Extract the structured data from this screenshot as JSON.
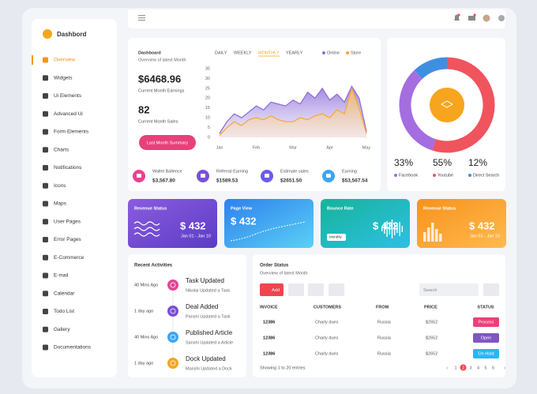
{
  "sidebar": {
    "brand": "Dashbord",
    "active": 0,
    "menu": [
      "Overview",
      "Widgets",
      "Ui Elements",
      "Advanced Ui",
      "Form Elements",
      "Charts",
      "Notifications",
      "Icons",
      "Maps",
      "User Pages",
      "Error Pages",
      "E-Commerce",
      "E-mail",
      "Calendar",
      "Todo List",
      "Gallery",
      "Documentations"
    ]
  },
  "overview": {
    "title": "Dashboard",
    "subtitle": "Overview of latest Month",
    "tabs": [
      "DAILY",
      "WEEKLY",
      "MONTHLY",
      "YEARLY"
    ],
    "active_tab": 2,
    "earnings": "$6468.96",
    "earnings_label": "Current Month Earnings",
    "sales": "82",
    "sales_label": "Current Month Sales",
    "button": "Last Month Summary",
    "summary": [
      {
        "label": "Wallet Ballence",
        "value": "$3,567.80",
        "color": "#e84393"
      },
      {
        "label": "Referral Earning",
        "value": "$1589.53",
        "color": "#7b4fd6"
      },
      {
        "label": "Estimate sales",
        "value": "$2651.50",
        "color": "#6c5ce7"
      },
      {
        "label": "Earning",
        "value": "$53,567.54",
        "color": "#3da5f4"
      }
    ]
  },
  "chart_data": [
    {
      "type": "line",
      "legend": "top-right",
      "x": [
        0,
        0.2,
        0.4,
        0.6,
        0.8,
        1,
        1.2,
        1.4,
        1.6,
        1.8,
        2,
        2.2,
        2.4,
        2.6,
        2.8,
        3,
        3.2,
        3.4,
        3.6,
        3.8,
        4
      ],
      "xlim": [
        0,
        4
      ],
      "xticks": [
        {
          "value": 0,
          "label": "Jan"
        },
        {
          "value": 1,
          "label": "Feb"
        },
        {
          "value": 2,
          "label": "Mar"
        },
        {
          "value": 3,
          "label": "Apr"
        },
        {
          "value": 4,
          "label": "May"
        }
      ],
      "ylim": [
        0,
        35
      ],
      "yticks": [
        0,
        5,
        10,
        15,
        20,
        25,
        30,
        35
      ],
      "series": [
        {
          "name": "Online",
          "color": "#8e6fd8",
          "values": [
            2,
            8,
            12,
            10,
            13,
            16,
            14,
            18,
            17,
            16,
            19,
            17,
            23,
            20,
            25,
            19,
            22,
            18,
            26,
            20,
            3
          ]
        },
        {
          "name": "Store",
          "color": "#f7a937",
          "values": [
            1,
            5,
            8,
            6,
            9,
            10,
            9,
            11,
            9,
            8,
            8,
            10,
            9,
            11,
            12,
            10,
            14,
            12,
            25,
            15,
            2
          ]
        }
      ]
    },
    {
      "type": "pie",
      "donut": true,
      "labels": [
        "Facebook",
        "Youtube",
        "Direct Search"
      ],
      "values": [
        33,
        55,
        12
      ],
      "value_labels": [
        "33%",
        "55%",
        "12%"
      ],
      "colors": [
        "#a46ee0",
        "#f0545d",
        "#3e8fe0"
      ]
    }
  ],
  "stat_cards": [
    {
      "title": "Revenue Status",
      "value": "$ 432",
      "period": "Jan 01 - Jan 10"
    },
    {
      "title": "Page View",
      "value": "$ 432"
    },
    {
      "title": "Bounce Rate",
      "value": "$ 432",
      "dropdown": "Monthly"
    },
    {
      "title": "Revenue Status",
      "value": "$ 432",
      "period": "Jan 01 - Jan 10"
    }
  ],
  "activities": {
    "title": "Recent Activities",
    "items": [
      {
        "time": "40 Mins Ago",
        "title": "Task Updated",
        "detail": "Nikolai Updated a Task",
        "color": "#e84393"
      },
      {
        "time": "1 day ago",
        "title": "Deal Added",
        "detail": "Panshi Updated a Task",
        "color": "#7b4fd6"
      },
      {
        "time": "40 Mins Ago",
        "title": "Published Article",
        "detail": "Sanshi Updated a Article",
        "color": "#3da5f4"
      },
      {
        "time": "1 day ago",
        "title": "Dock Updated",
        "detail": "Manshi Updated a Dock",
        "color": "#f5a623"
      }
    ]
  },
  "orders": {
    "title": "Order Status",
    "subtitle": "Overview of latest Month",
    "add": "Add",
    "search": "Search",
    "columns": [
      "INVOICE",
      "CUSTOMERS",
      "FROM",
      "PRICE",
      "STATUS"
    ],
    "rows": [
      [
        "12386",
        "Charly dues",
        "Russia",
        "$2652",
        "Process"
      ],
      [
        "12386",
        "Charly dues",
        "Russia",
        "$2652",
        "Open"
      ],
      [
        "12386",
        "Charly dues",
        "Russia",
        "$2652",
        "On Hold"
      ]
    ],
    "status_colors": [
      "#ec407a",
      "#7e57c2",
      "#29b6f6"
    ],
    "footer": "Showing 1 to 20 entries",
    "pages": [
      1,
      2,
      3,
      4,
      5,
      6
    ],
    "active_page": 1
  }
}
